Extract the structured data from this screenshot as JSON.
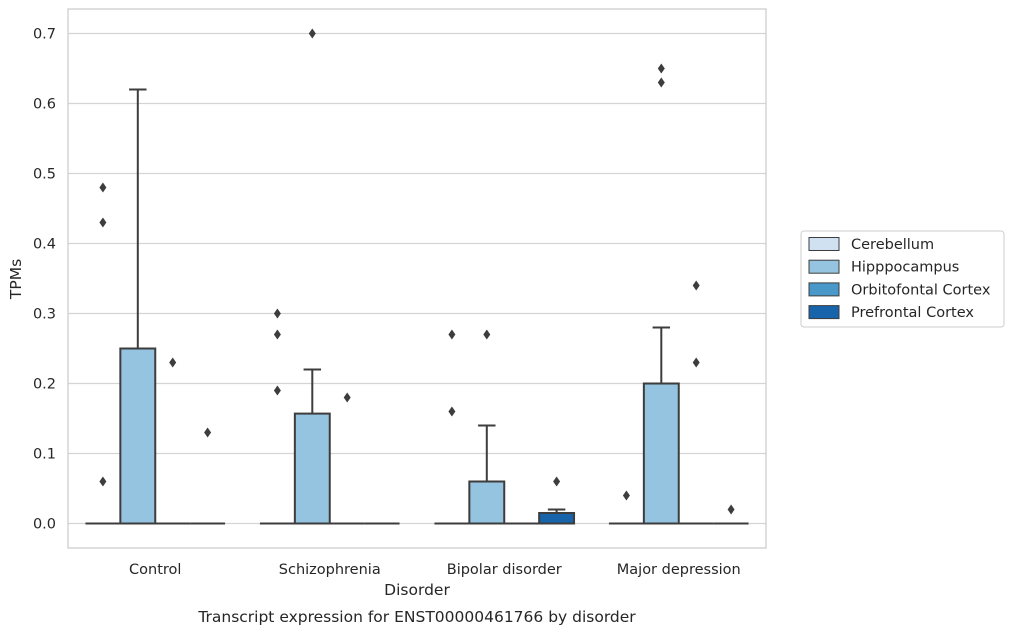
{
  "chart_data": {
    "type": "box",
    "caption": "Transcript expression for ENST00000461766 by disorder",
    "xlabel": "Disorder",
    "ylabel": "TPMs",
    "ylim": [
      -0.035,
      0.735
    ],
    "yticks": [
      0.0,
      0.1,
      0.2,
      0.3,
      0.4,
      0.5,
      0.6,
      0.7
    ],
    "ytick_labels": [
      "0.0",
      "0.1",
      "0.2",
      "0.3",
      "0.4",
      "0.5",
      "0.6",
      "0.7"
    ],
    "grid": "horizontal",
    "legend_position": "right",
    "categories": [
      "Control",
      "Schizophrenia",
      "Bipolar disorder",
      "Major depression"
    ],
    "series": [
      {
        "name": "Cerebellum",
        "color": "#d0e1f2",
        "boxes": [
          {
            "q1": 0,
            "median": 0,
            "q3": 0,
            "whisker_low": 0,
            "whisker_high": 0,
            "outliers": [
              0.06,
              0.43,
              0.48
            ]
          },
          {
            "q1": 0,
            "median": 0,
            "q3": 0,
            "whisker_low": 0,
            "whisker_high": 0,
            "outliers": [
              0.19,
              0.27,
              0.3
            ]
          },
          {
            "q1": 0,
            "median": 0,
            "q3": 0,
            "whisker_low": 0,
            "whisker_high": 0,
            "outliers": [
              0.16,
              0.27
            ]
          },
          {
            "q1": 0,
            "median": 0,
            "q3": 0,
            "whisker_low": 0,
            "whisker_high": 0,
            "outliers": [
              0.04
            ]
          }
        ]
      },
      {
        "name": "Hipppocampus",
        "color": "#94c4df",
        "boxes": [
          {
            "q1": 0,
            "median": 0,
            "q3": 0.25,
            "whisker_low": 0,
            "whisker_high": 0.62,
            "outliers": []
          },
          {
            "q1": 0,
            "median": 0,
            "q3": 0.157,
            "whisker_low": 0,
            "whisker_high": 0.22,
            "outliers": [
              0.7
            ]
          },
          {
            "q1": 0,
            "median": 0,
            "q3": 0.06,
            "whisker_low": 0,
            "whisker_high": 0.14,
            "outliers": [
              0.27
            ]
          },
          {
            "q1": 0,
            "median": 0,
            "q3": 0.2,
            "whisker_low": 0,
            "whisker_high": 0.28,
            "outliers": [
              0.63,
              0.65
            ]
          }
        ]
      },
      {
        "name": "Orbitofontal Cortex",
        "color": "#4a98c9",
        "boxes": [
          {
            "q1": 0,
            "median": 0,
            "q3": 0,
            "whisker_low": 0,
            "whisker_high": 0,
            "outliers": [
              0.23
            ]
          },
          {
            "q1": 0,
            "median": 0,
            "q3": 0,
            "whisker_low": 0,
            "whisker_high": 0,
            "outliers": [
              0.18
            ]
          },
          {
            "q1": 0,
            "median": 0,
            "q3": 0,
            "whisker_low": 0,
            "whisker_high": 0,
            "outliers": []
          },
          {
            "q1": 0,
            "median": 0,
            "q3": 0,
            "whisker_low": 0,
            "whisker_high": 0,
            "outliers": [
              0.23,
              0.34
            ]
          }
        ]
      },
      {
        "name": "Prefrontal Cortex",
        "color": "#1764ab",
        "boxes": [
          {
            "q1": 0,
            "median": 0,
            "q3": 0,
            "whisker_low": 0,
            "whisker_high": 0,
            "outliers": [
              0.13
            ]
          },
          {
            "q1": 0,
            "median": 0,
            "q3": 0,
            "whisker_low": 0,
            "whisker_high": 0,
            "outliers": []
          },
          {
            "q1": 0,
            "median": 0,
            "q3": 0.015,
            "whisker_low": 0,
            "whisker_high": 0.02,
            "outliers": [
              0.06
            ]
          },
          {
            "q1": 0,
            "median": 0,
            "q3": 0,
            "whisker_low": 0,
            "whisker_high": 0,
            "outliers": [
              0.02
            ]
          }
        ]
      }
    ]
  }
}
